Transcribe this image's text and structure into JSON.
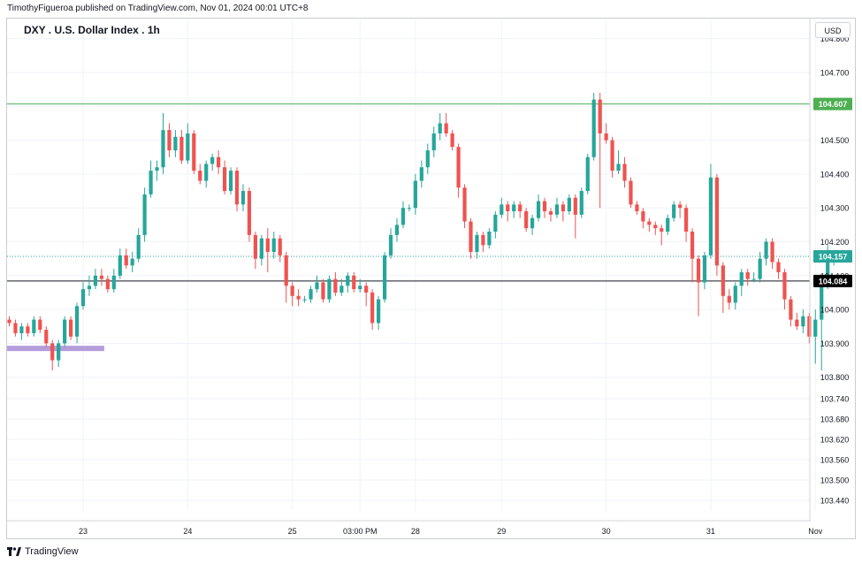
{
  "header": {
    "publisher": "TimothyFigueroa published on TradingView.com, Nov 01, 2024 00:01 UTC+8",
    "symbol_title": "DXY . U.S. Dollar Index . 1h",
    "currency_button": "USD"
  },
  "footer": {
    "brand": "TradingView"
  },
  "colors": {
    "up": "#26a69a",
    "down": "#ef5350",
    "resistance": "#4caf50",
    "support": "#131722",
    "highlight": "#b39ddb",
    "last_price": "#26a69a"
  },
  "chart_data": {
    "type": "candlestick",
    "title": "DXY . U.S. Dollar Index . 1h",
    "ylim": [
      103.385,
      104.86
    ],
    "y_ticks": [
      "104.800",
      "104.700",
      "104.600",
      "104.500",
      "104.400",
      "104.300",
      "104.200",
      "104.100",
      "104.000",
      "103.900",
      "103.800",
      "103.740",
      "103.680",
      "103.620",
      "103.560",
      "103.500",
      "103.440"
    ],
    "y_tick_values": [
      104.8,
      104.7,
      104.6,
      104.5,
      104.4,
      104.3,
      104.2,
      104.1,
      104.0,
      103.9,
      103.8,
      103.74,
      103.68,
      103.62,
      103.56,
      103.5,
      103.44
    ],
    "x_ticks": [
      {
        "label": "23",
        "index": 12
      },
      {
        "label": "24",
        "index": 29
      },
      {
        "label": "25",
        "index": 46
      },
      {
        "label": "03:00 PM",
        "index": 57
      },
      {
        "label": "28",
        "index": 66
      },
      {
        "label": "29",
        "index": 80
      },
      {
        "label": "30",
        "index": 97
      },
      {
        "label": "31",
        "index": 114
      },
      {
        "label": "Nov",
        "index": 131
      }
    ],
    "horizontal_lines": [
      {
        "name": "resistance",
        "value": 104.607,
        "label": "104.607"
      },
      {
        "name": "support",
        "value": 104.084,
        "label": "104.084"
      }
    ],
    "last_price": {
      "value": 104.157,
      "label": "104.157"
    },
    "highlight_zone": {
      "value": 103.885,
      "from_index": 0,
      "to_index": 15
    },
    "candles": [
      [
        103.97,
        103.96,
        103.98,
        103.95
      ],
      [
        103.96,
        103.93,
        103.97,
        103.92
      ],
      [
        103.93,
        103.95,
        103.96,
        103.91
      ],
      [
        103.95,
        103.93,
        103.96,
        103.92
      ],
      [
        103.93,
        103.97,
        103.98,
        103.92
      ],
      [
        103.97,
        103.94,
        103.98,
        103.93
      ],
      [
        103.94,
        103.9,
        103.95,
        103.89
      ],
      [
        103.9,
        103.85,
        103.91,
        103.82
      ],
      [
        103.85,
        103.9,
        103.91,
        103.83
      ],
      [
        103.9,
        103.97,
        103.98,
        103.89
      ],
      [
        103.97,
        103.92,
        103.98,
        103.91
      ],
      [
        103.92,
        104.01,
        104.02,
        103.9
      ],
      [
        104.01,
        104.06,
        104.08,
        104.0
      ],
      [
        104.06,
        104.07,
        104.1,
        104.04
      ],
      [
        104.07,
        104.1,
        104.12,
        104.06
      ],
      [
        104.1,
        104.09,
        104.12,
        104.07
      ],
      [
        104.09,
        104.06,
        104.1,
        104.05
      ],
      [
        104.06,
        104.1,
        104.12,
        104.05
      ],
      [
        104.1,
        104.16,
        104.18,
        104.09
      ],
      [
        104.16,
        104.13,
        104.18,
        104.12
      ],
      [
        104.13,
        104.15,
        104.17,
        104.11
      ],
      [
        104.15,
        104.22,
        104.24,
        104.14
      ],
      [
        104.22,
        104.34,
        104.36,
        104.2
      ],
      [
        104.34,
        104.41,
        104.44,
        104.33
      ],
      [
        104.41,
        104.42,
        104.44,
        104.38
      ],
      [
        104.42,
        104.53,
        104.58,
        104.4
      ],
      [
        104.53,
        104.47,
        104.55,
        104.45
      ],
      [
        104.47,
        104.51,
        104.53,
        104.45
      ],
      [
        104.51,
        104.44,
        104.53,
        104.43
      ],
      [
        104.44,
        104.52,
        104.55,
        104.43
      ],
      [
        104.52,
        104.41,
        104.53,
        104.4
      ],
      [
        104.41,
        104.38,
        104.43,
        104.37
      ],
      [
        104.38,
        104.43,
        104.44,
        104.36
      ],
      [
        104.43,
        104.45,
        104.46,
        104.41
      ],
      [
        104.45,
        104.42,
        104.47,
        104.4
      ],
      [
        104.42,
        104.35,
        104.44,
        104.34
      ],
      [
        104.35,
        104.41,
        104.42,
        104.34
      ],
      [
        104.41,
        104.31,
        104.42,
        104.29
      ],
      [
        104.31,
        104.35,
        104.37,
        104.29
      ],
      [
        104.35,
        104.22,
        104.36,
        104.2
      ],
      [
        104.22,
        104.15,
        104.23,
        104.12
      ],
      [
        104.15,
        104.21,
        104.22,
        104.13
      ],
      [
        104.21,
        104.17,
        104.24,
        104.11
      ],
      [
        104.17,
        104.21,
        104.23,
        104.15
      ],
      [
        104.21,
        104.16,
        104.22,
        104.14
      ],
      [
        104.16,
        104.07,
        104.17,
        104.02
      ],
      [
        104.07,
        104.04,
        104.08,
        104.01
      ],
      [
        104.04,
        104.03,
        104.06,
        104.01
      ],
      [
        104.03,
        104.03,
        104.04,
        104.02
      ],
      [
        104.03,
        104.06,
        104.07,
        104.02
      ],
      [
        104.06,
        104.08,
        104.1,
        104.05
      ],
      [
        104.08,
        104.03,
        104.09,
        104.02
      ],
      [
        104.03,
        104.09,
        104.1,
        104.02
      ],
      [
        104.09,
        104.05,
        104.11,
        104.04
      ],
      [
        104.05,
        104.07,
        104.09,
        104.04
      ],
      [
        104.07,
        104.1,
        104.11,
        104.05
      ],
      [
        104.1,
        104.06,
        104.11,
        104.05
      ],
      [
        104.06,
        104.07,
        104.09,
        104.05
      ],
      [
        104.07,
        104.05,
        104.08,
        104.01
      ],
      [
        104.05,
        103.96,
        104.06,
        103.94
      ],
      [
        103.96,
        104.03,
        104.04,
        103.94
      ],
      [
        104.03,
        104.16,
        104.17,
        104.02
      ],
      [
        104.16,
        104.22,
        104.24,
        104.15
      ],
      [
        104.22,
        104.25,
        104.27,
        104.2
      ],
      [
        104.25,
        104.3,
        104.32,
        104.24
      ],
      [
        104.3,
        104.3,
        104.31,
        104.29
      ],
      [
        104.3,
        104.38,
        104.4,
        104.28
      ],
      [
        104.38,
        104.42,
        104.44,
        104.36
      ],
      [
        104.42,
        104.47,
        104.49,
        104.4
      ],
      [
        104.47,
        104.52,
        104.54,
        104.45
      ],
      [
        104.52,
        104.55,
        104.58,
        104.5
      ],
      [
        104.55,
        104.52,
        104.58,
        104.51
      ],
      [
        104.52,
        104.48,
        104.53,
        104.47
      ],
      [
        104.48,
        104.36,
        104.49,
        104.33
      ],
      [
        104.36,
        104.26,
        104.37,
        104.24
      ],
      [
        104.26,
        104.17,
        104.27,
        104.15
      ],
      [
        104.17,
        104.22,
        104.23,
        104.15
      ],
      [
        104.22,
        104.19,
        104.23,
        104.17
      ],
      [
        104.19,
        104.23,
        104.24,
        104.18
      ],
      [
        104.23,
        104.28,
        104.29,
        104.21
      ],
      [
        104.28,
        104.31,
        104.33,
        104.27
      ],
      [
        104.31,
        104.29,
        104.32,
        104.26
      ],
      [
        104.29,
        104.31,
        104.32,
        104.27
      ],
      [
        104.31,
        104.29,
        104.32,
        104.27
      ],
      [
        104.29,
        104.24,
        104.3,
        104.23
      ],
      [
        104.24,
        104.27,
        104.28,
        104.22
      ],
      [
        104.27,
        104.32,
        104.34,
        104.26
      ],
      [
        104.32,
        104.29,
        104.33,
        104.27
      ],
      [
        104.29,
        104.28,
        104.3,
        104.26
      ],
      [
        104.28,
        104.31,
        104.33,
        104.27
      ],
      [
        104.31,
        104.29,
        104.32,
        104.26
      ],
      [
        104.29,
        104.33,
        104.34,
        104.28
      ],
      [
        104.33,
        104.28,
        104.34,
        104.21
      ],
      [
        104.28,
        104.35,
        104.36,
        104.27
      ],
      [
        104.35,
        104.45,
        104.46,
        104.34
      ],
      [
        104.45,
        104.62,
        104.64,
        104.44
      ],
      [
        104.62,
        104.52,
        104.64,
        104.3
      ],
      [
        104.52,
        104.5,
        104.55,
        104.49
      ],
      [
        104.5,
        104.41,
        104.51,
        104.39
      ],
      [
        104.41,
        104.43,
        104.47,
        104.4
      ],
      [
        104.43,
        104.38,
        104.45,
        104.36
      ],
      [
        104.38,
        104.31,
        104.39,
        104.3
      ],
      [
        104.31,
        104.29,
        104.32,
        104.28
      ],
      [
        104.29,
        104.26,
        104.3,
        104.24
      ],
      [
        104.26,
        104.25,
        104.27,
        104.23
      ],
      [
        104.25,
        104.24,
        104.26,
        104.22
      ],
      [
        104.24,
        104.23,
        104.25,
        104.19
      ],
      [
        104.23,
        104.27,
        104.28,
        104.22
      ],
      [
        104.27,
        104.31,
        104.32,
        104.26
      ],
      [
        104.31,
        104.3,
        104.32,
        104.27
      ],
      [
        104.3,
        104.23,
        104.31,
        104.2
      ],
      [
        104.23,
        104.15,
        104.24,
        104.08
      ],
      [
        104.15,
        104.08,
        104.16,
        103.98
      ],
      [
        104.08,
        104.16,
        104.17,
        104.06
      ],
      [
        104.16,
        104.39,
        104.43,
        104.15
      ],
      [
        104.39,
        104.13,
        104.4,
        104.1
      ],
      [
        104.13,
        104.04,
        104.14,
        103.99
      ],
      [
        104.04,
        104.02,
        104.06,
        104.0
      ],
      [
        104.02,
        104.07,
        104.08,
        104.0
      ],
      [
        104.07,
        104.11,
        104.12,
        104.04
      ],
      [
        104.11,
        104.09,
        104.12,
        104.07
      ],
      [
        104.09,
        104.09,
        104.11,
        104.08
      ],
      [
        104.09,
        104.15,
        104.17,
        104.08
      ],
      [
        104.15,
        104.2,
        104.21,
        104.13
      ],
      [
        104.2,
        104.14,
        104.21,
        104.12
      ],
      [
        104.14,
        104.11,
        104.15,
        104.09
      ],
      [
        104.11,
        104.03,
        104.12,
        104.0
      ],
      [
        104.03,
        103.97,
        104.04,
        103.95
      ],
      [
        103.97,
        103.95,
        103.99,
        103.94
      ],
      [
        103.95,
        103.98,
        104.0,
        103.93
      ],
      [
        103.98,
        103.92,
        103.99,
        103.9
      ],
      [
        103.92,
        103.97,
        104.0,
        103.84
      ],
      [
        103.97,
        104.07,
        104.09,
        103.82
      ],
      [
        104.07,
        104.15,
        104.19,
        104.06
      ],
      [
        104.15,
        104.157,
        104.16,
        104.13
      ]
    ]
  }
}
